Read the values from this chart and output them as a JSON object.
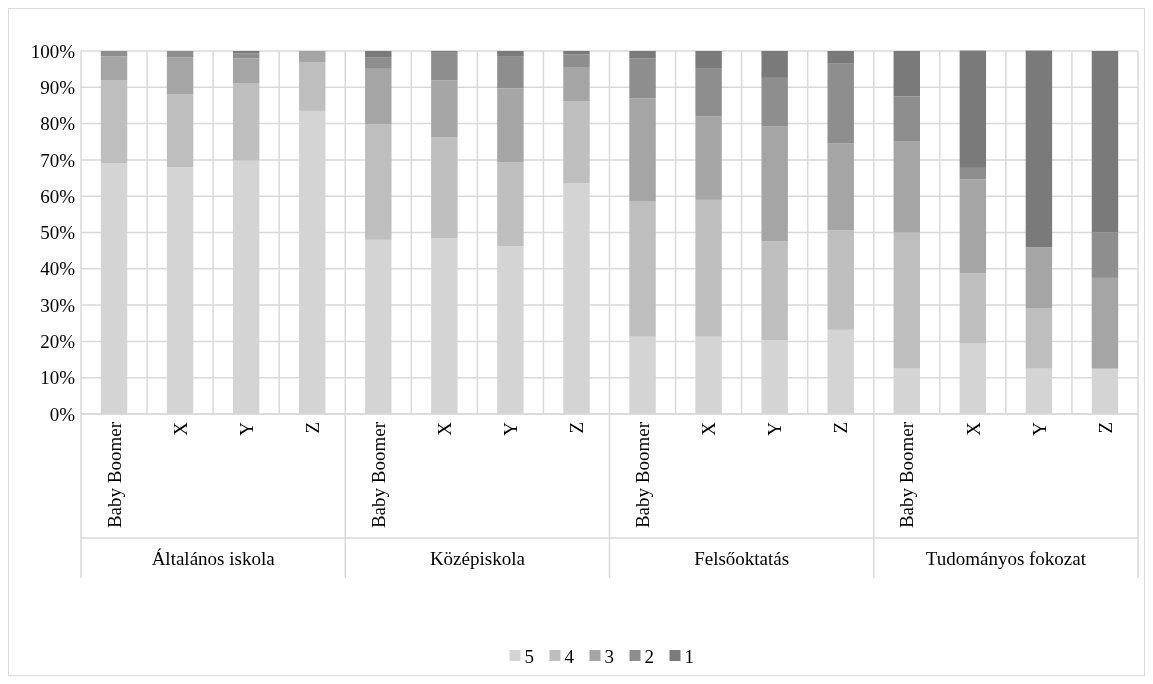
{
  "chart_data": {
    "type": "bar",
    "stacked": true,
    "grid": true,
    "legend": "bottom",
    "categories": [
      "Baby Boomer",
      "X",
      "Y",
      "Z",
      "Baby Boomer",
      "X",
      "Y",
      "Z",
      "Baby Boomer",
      "X",
      "Y",
      "Z",
      "Baby Boomer",
      "X",
      "Y",
      "Z"
    ],
    "annotations": [
      "Általános iskola",
      "Középiskola",
      "Felsőoktatás",
      "Tudományos fokozat"
    ],
    "ylim": [
      0,
      100
    ],
    "yticks": [
      {
        "value": 0,
        "label": "0%"
      },
      {
        "value": 10,
        "label": "10%"
      },
      {
        "value": 20,
        "label": "20%"
      },
      {
        "value": 30,
        "label": "30%"
      },
      {
        "value": 40,
        "label": "40%"
      },
      {
        "value": 50,
        "label": "50%"
      },
      {
        "value": 60,
        "label": "60%"
      },
      {
        "value": 70,
        "label": "70%"
      },
      {
        "value": 80,
        "label": "80%"
      },
      {
        "value": 90,
        "label": "90%"
      },
      {
        "value": 100,
        "label": "100%"
      }
    ],
    "series": [
      {
        "name": "5",
        "color": "#d4d4d4",
        "values": [
          69,
          68,
          69.8,
          83.5,
          48,
          48.4,
          46.2,
          63.5,
          21.3,
          21.3,
          20.3,
          23.2,
          12.5,
          19.4,
          12.5,
          12.5
        ]
      },
      {
        "name": "4",
        "color": "#bebebe",
        "values": [
          23,
          20,
          21.2,
          13.3,
          31.8,
          27.8,
          23.1,
          22.7,
          37.2,
          37.7,
          27.3,
          27.4,
          37.5,
          19.4,
          16.7,
          0
        ]
      },
      {
        "name": "3",
        "color": "#a5a5a5",
        "values": [
          6.5,
          10.3,
          7,
          3.2,
          15.3,
          15.7,
          20.4,
          9.4,
          28.5,
          23,
          31.7,
          23.9,
          25,
          25.8,
          16.7,
          25
        ]
      },
      {
        "name": "2",
        "color": "#8e8e8e",
        "values": [
          1.5,
          1.7,
          1.3,
          0,
          3.2,
          7.8,
          8.9,
          3.5,
          10.9,
          13.1,
          13.3,
          22,
          12.5,
          3.2,
          0,
          12.5
        ]
      },
      {
        "name": "1",
        "color": "#7a7a7a",
        "values": [
          0,
          0,
          0.7,
          0,
          1.7,
          0.3,
          1.4,
          0.9,
          2.1,
          4.9,
          7.4,
          3.5,
          12.5,
          32.3,
          54.2,
          50
        ]
      }
    ]
  }
}
